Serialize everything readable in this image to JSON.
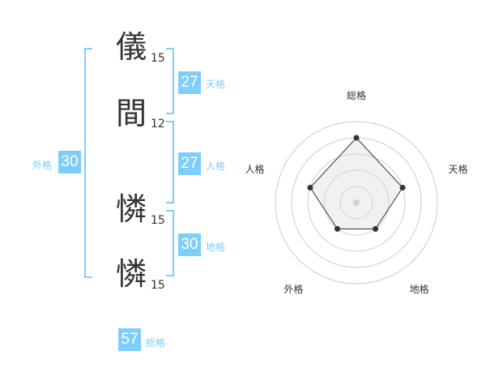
{
  "name_chars": [
    {
      "char": "儀",
      "strokes": "15"
    },
    {
      "char": "間",
      "strokes": "12"
    },
    {
      "char": "憐",
      "strokes": "15"
    },
    {
      "char": "憐",
      "strokes": "15"
    }
  ],
  "fortunes": {
    "tenkaku": {
      "label": "天格",
      "value": "27"
    },
    "jinkaku": {
      "label": "人格",
      "value": "27"
    },
    "chikaku": {
      "label": "地格",
      "value": "30"
    },
    "gaikaku": {
      "label": "外格",
      "value": "30"
    },
    "soukaku": {
      "label": "総格",
      "value": "57"
    }
  },
  "colors": {
    "accent": "#7fcdfb",
    "text": "#333333",
    "radar_fill": "#f0f0f0"
  },
  "chart_data": {
    "type": "radar",
    "axes": [
      "総格",
      "天格",
      "地格",
      "外格",
      "人格"
    ],
    "values": [
      4,
      3,
      2,
      2,
      3
    ],
    "max": 5,
    "grid": true
  }
}
